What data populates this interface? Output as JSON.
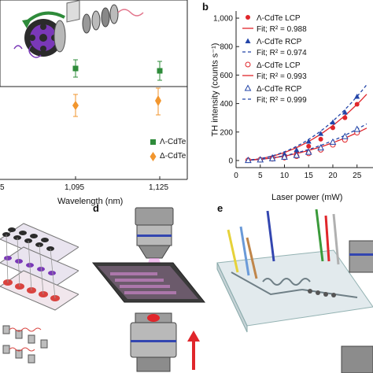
{
  "panels": {
    "b": "b",
    "d": "d",
    "e": "e"
  },
  "panel_a": {
    "legend": [
      {
        "label": "Λ-CdTe",
        "color": "#2e8b3a",
        "marker": "square"
      },
      {
        "label": "Δ-CdTe",
        "color": "#f2962e",
        "marker": "diamond"
      }
    ],
    "xlabel": "Wavelength (nm)",
    "xticks": [
      "5",
      "1,095",
      "1,125"
    ]
  },
  "chart_data": {
    "type": "scatter",
    "title": "",
    "xlabel": "Laser power (mW)",
    "ylabel": "TH intensity (counts s⁻¹)",
    "xlim": [
      0,
      27
    ],
    "ylim": [
      -50,
      1050
    ],
    "xticks": [
      0,
      5,
      10,
      15,
      20,
      25
    ],
    "xtick_labels": [
      "0",
      "5",
      "10",
      "15",
      "20",
      "25"
    ],
    "yticks": [
      0,
      200,
      400,
      600,
      800,
      1000
    ],
    "ytick_labels": [
      "0",
      "200",
      "400",
      "600",
      "800",
      "1,000"
    ],
    "grid": false,
    "legend_position": "top-right",
    "series": [
      {
        "name": "Λ-CdTe LCP",
        "marker": "filled-circle",
        "color": "#e0262b",
        "x": [
          2.5,
          5,
          7.5,
          10,
          12.5,
          15,
          17.5,
          20,
          22.5,
          25
        ],
        "y": [
          3,
          8,
          20,
          35,
          60,
          100,
          150,
          230,
          300,
          395
        ],
        "fit_label": "Fit; R² = 0.988",
        "fit_style": "solid",
        "fit_color": "#e0262b"
      },
      {
        "name": "Λ-CdTe RCP",
        "marker": "filled-triangle",
        "color": "#2345a8",
        "x": [
          2.5,
          5,
          7.5,
          10,
          12.5,
          15,
          17.5,
          20,
          22.5,
          25
        ],
        "y": [
          3,
          10,
          25,
          45,
          75,
          135,
          190,
          270,
          340,
          450
        ],
        "fit_label": "Fit; R² = 0.974",
        "fit_style": "dashed",
        "fit_color": "#2345a8"
      },
      {
        "name": "Δ-CdTe LCP",
        "marker": "open-circle",
        "color": "#e0262b",
        "x": [
          2.5,
          5,
          7.5,
          10,
          12.5,
          15,
          17.5,
          20,
          22.5,
          25
        ],
        "y": [
          2,
          5,
          12,
          20,
          30,
          50,
          75,
          110,
          145,
          195
        ],
        "fit_label": "Fit; R² = 0.993",
        "fit_style": "solid",
        "fit_color": "#e0262b"
      },
      {
        "name": "Δ-CdTe RCP",
        "marker": "open-triangle",
        "color": "#2345a8",
        "x": [
          2.5,
          5,
          7.5,
          10,
          12.5,
          15,
          17.5,
          20,
          22.5,
          25
        ],
        "y": [
          2,
          6,
          14,
          25,
          38,
          60,
          90,
          130,
          170,
          220
        ],
        "fit_label": "Fit; R² = 0.999",
        "fit_style": "dashed",
        "fit_color": "#2345a8"
      }
    ]
  }
}
